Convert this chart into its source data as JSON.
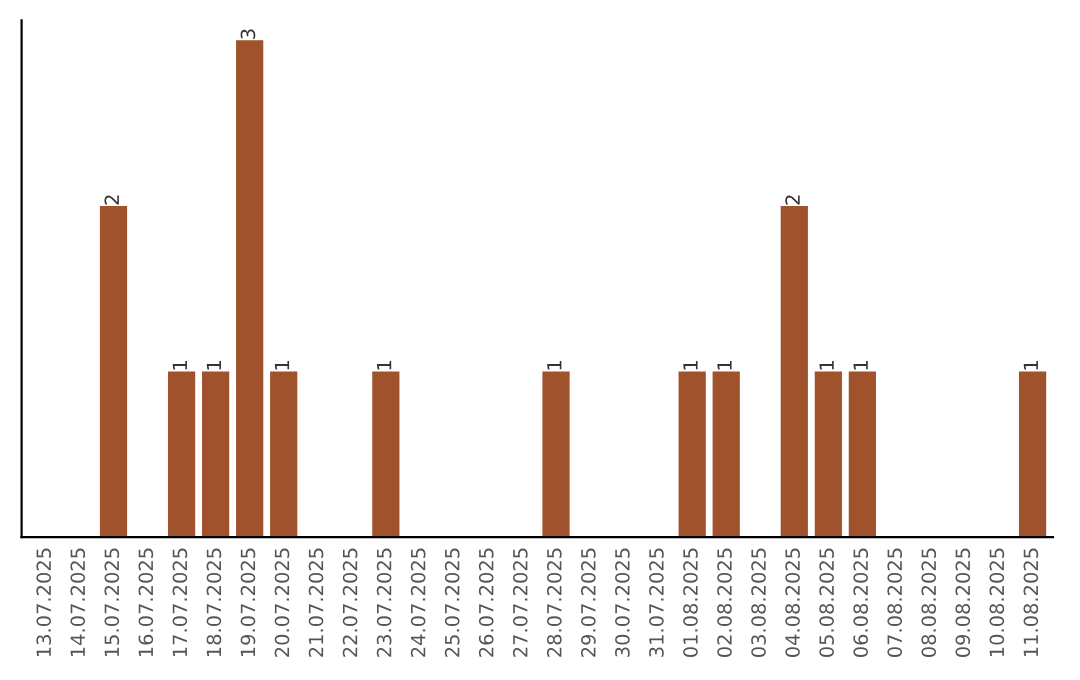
{
  "chart_data": {
    "type": "bar",
    "categories": [
      "13.07.2025",
      "14.07.2025",
      "15.07.2025",
      "16.07.2025",
      "17.07.2025",
      "18.07.2025",
      "19.07.2025",
      "20.07.2025",
      "21.07.2025",
      "22.07.2025",
      "23.07.2025",
      "24.07.2025",
      "25.07.2025",
      "26.07.2025",
      "27.07.2025",
      "28.07.2025",
      "29.07.2025",
      "30.07.2025",
      "31.07.2025",
      "01.08.2025",
      "02.08.2025",
      "03.08.2025",
      "04.08.2025",
      "05.08.2025",
      "06.08.2025",
      "07.08.2025",
      "08.08.2025",
      "09.08.2025",
      "10.08.2025",
      "11.08.2025"
    ],
    "values": [
      0,
      0,
      2,
      0,
      1,
      1,
      3,
      1,
      0,
      0,
      1,
      0,
      0,
      0,
      0,
      1,
      0,
      0,
      0,
      1,
      1,
      0,
      2,
      1,
      1,
      0,
      0,
      0,
      0,
      1
    ],
    "value_labels": [
      null,
      null,
      "2",
      null,
      "1",
      "1",
      "3",
      "1",
      null,
      null,
      "1",
      null,
      null,
      null,
      null,
      "1",
      null,
      null,
      null,
      "1",
      "1",
      null,
      "2",
      "1",
      "1",
      null,
      null,
      null,
      null,
      "1"
    ],
    "color": "#a0522d",
    "tick_labels": "x",
    "grid": false,
    "legend": false
  }
}
